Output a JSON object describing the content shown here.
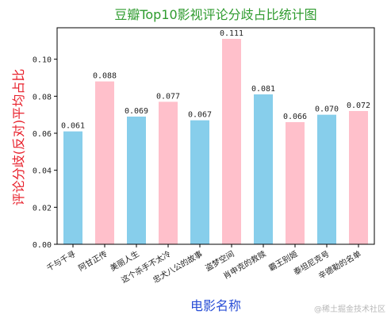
{
  "chart_data": {
    "type": "bar",
    "title": "豆瓣Top10影视评论分歧占比统计图",
    "xlabel": "电影名称",
    "ylabel": "评论分歧(反对)平均占比",
    "categories": [
      "千与千寻",
      "阿甘正传",
      "美丽人生",
      "这个杀手不太冷",
      "忠犬八公的故事",
      "盗梦空间",
      "肖申克的救赎",
      "霸王别姬",
      "泰坦尼克号",
      "辛德勒的名单"
    ],
    "values": [
      0.061,
      0.088,
      0.069,
      0.077,
      0.067,
      0.111,
      0.081,
      0.066,
      0.07,
      0.072
    ],
    "value_labels": [
      "0.061",
      "0.088",
      "0.069",
      "0.077",
      "0.067",
      "0.111",
      "0.081",
      "0.066",
      "0.070",
      "0.072"
    ],
    "yticks": [
      0.0,
      0.02,
      0.04,
      0.06,
      0.08,
      0.1
    ],
    "ytick_labels": [
      "0.00",
      "0.02",
      "0.04",
      "0.06",
      "0.08",
      "0.10"
    ],
    "ylim": [
      0,
      0.117
    ],
    "grid": false,
    "colors": [
      "#87ceeb",
      "#ffc0cb"
    ]
  },
  "watermark": "@稀土掘金技术社区"
}
